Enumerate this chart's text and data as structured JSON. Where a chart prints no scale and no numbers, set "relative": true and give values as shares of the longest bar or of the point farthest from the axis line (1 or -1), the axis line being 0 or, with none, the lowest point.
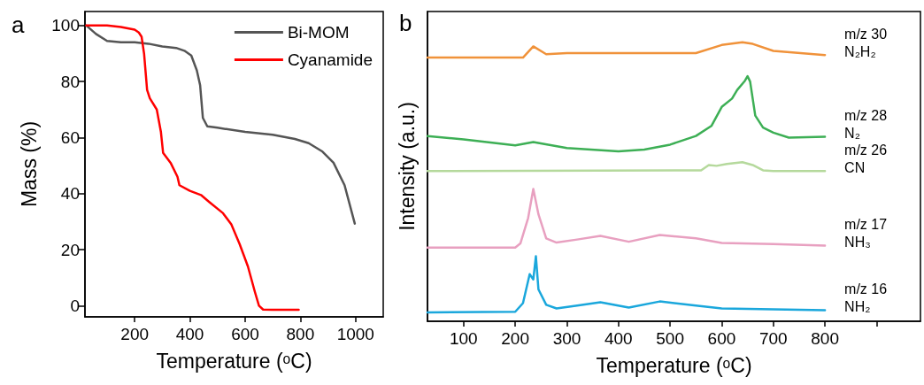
{
  "chart_data": [
    {
      "type": "line",
      "title": "a",
      "xlabel": "Temperature (ᵒC)",
      "ylabel": "Mass (%)",
      "xlim": [
        20,
        1100
      ],
      "ylim": [
        -4,
        105
      ],
      "xticks": [
        200,
        400,
        600,
        800,
        1000
      ],
      "yticks": [
        0,
        20,
        40,
        60,
        80,
        100
      ],
      "legend": "top right",
      "grid": false,
      "marker": "none",
      "line_style": "solid",
      "series": [
        {
          "name": "Bi-MOM",
          "color": "#555555",
          "x": [
            25,
            60,
            100,
            150,
            200,
            250,
            300,
            350,
            380,
            405,
            425,
            437,
            447,
            463,
            500,
            600,
            700,
            780,
            830,
            880,
            920,
            960,
            997
          ],
          "values": [
            100,
            97,
            94.5,
            94,
            94,
            93.5,
            92.5,
            92,
            91,
            89.3,
            84,
            78.7,
            67,
            64,
            63.5,
            62,
            61,
            59.5,
            58,
            55,
            51,
            43,
            29.3
          ]
        },
        {
          "name": "Cyanamide",
          "color": "#ff0000",
          "x": [
            25,
            100,
            150,
            200,
            215,
            225,
            234,
            245,
            255,
            280,
            295,
            303,
            330,
            355,
            362,
            400,
            440,
            470,
            520,
            550,
            580,
            610,
            635,
            650,
            665,
            700,
            794
          ],
          "values": [
            100,
            100,
            99.5,
            98.5,
            97.5,
            96,
            90,
            77,
            74,
            70,
            62,
            54.5,
            51,
            46,
            43,
            41,
            39.5,
            37,
            33,
            29,
            22,
            14,
            5,
            0,
            -1.4,
            -1.5,
            -1.5
          ]
        }
      ]
    },
    {
      "type": "line",
      "title": "b",
      "xlabel": "Temperature (ᵒC)",
      "ylabel": "Intensity (a.u.)",
      "relative": true,
      "xlim": [
        30,
        985
      ],
      "xticks": [
        100,
        200,
        300,
        400,
        500,
        600,
        700,
        800,
        {
          "value": 900,
          "label": null
        }
      ],
      "legend": false,
      "grid": false,
      "marker": "none",
      "line_style": "solid",
      "series": [
        {
          "name": "m/z 30\nN₂H₂",
          "color": "#f0923a",
          "x": [
            30,
            100,
            215,
            235,
            260,
            300,
            400,
            550,
            600,
            640,
            660,
            700,
            800
          ],
          "values": [
            0.945,
            0.945,
            0.945,
            0.985,
            0.957,
            0.961,
            0.961,
            0.961,
            0.99,
            1.0,
            0.994,
            0.969,
            0.954
          ]
        },
        {
          "name": "m/z 28\nN₂",
          "color": "#3daf55",
          "x": [
            30,
            100,
            200,
            235,
            300,
            400,
            450,
            500,
            550,
            580,
            600,
            620,
            630,
            645,
            650,
            655,
            665,
            680,
            700,
            730,
            800
          ],
          "values": [
            0.664,
            0.652,
            0.63,
            0.642,
            0.621,
            0.609,
            0.615,
            0.633,
            0.664,
            0.7,
            0.768,
            0.798,
            0.829,
            0.862,
            0.878,
            0.859,
            0.737,
            0.694,
            0.676,
            0.658,
            0.661
          ]
        },
        {
          "name": "m/z 26\nCN",
          "color": "#b5d99c",
          "x": [
            30,
            560,
            575,
            590,
            610,
            640,
            660,
            680,
            700,
            800
          ],
          "values": [
            0.538,
            0.541,
            0.56,
            0.557,
            0.564,
            0.57,
            0.56,
            0.541,
            0.538,
            0.538
          ]
        },
        {
          "name": "m/z 17\nNH₃",
          "color": "#e8a0c0",
          "x": [
            30,
            200,
            210,
            225,
            235,
            245,
            260,
            280,
            320,
            365,
            420,
            480,
            550,
            600,
            700,
            800
          ],
          "values": [
            0.264,
            0.264,
            0.279,
            0.37,
            0.474,
            0.383,
            0.297,
            0.282,
            0.293,
            0.306,
            0.285,
            0.309,
            0.297,
            0.281,
            0.277,
            0.271
          ]
        },
        {
          "name": "m/z 16\nNH₂",
          "color": "#1aa7dc",
          "x": [
            30,
            200,
            215,
            228,
            235,
            240,
            245,
            260,
            280,
            320,
            365,
            420,
            480,
            550,
            600,
            800
          ],
          "values": [
            0.032,
            0.034,
            0.065,
            0.169,
            0.15,
            0.233,
            0.114,
            0.059,
            0.046,
            0.056,
            0.068,
            0.049,
            0.071,
            0.056,
            0.046,
            0.04
          ]
        }
      ]
    }
  ]
}
